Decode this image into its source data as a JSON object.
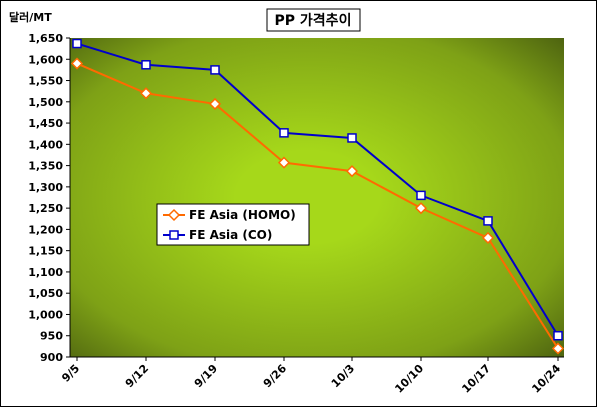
{
  "chart_data": {
    "type": "line",
    "title": "PP 가격추이",
    "ylabel": "달러/MT",
    "xlabel": "",
    "categories": [
      "9/5",
      "9/12",
      "9/19",
      "9/26",
      "10/3",
      "10/10",
      "10/17",
      "10/24"
    ],
    "ylim": [
      900,
      1650
    ],
    "ytick_step": 50,
    "yticks": [
      "900",
      "950",
      "1,000",
      "1,050",
      "1,100",
      "1,150",
      "1,200",
      "1,250",
      "1,300",
      "1,350",
      "1,400",
      "1,450",
      "1,500",
      "1,550",
      "1,600",
      "1,650"
    ],
    "grid": false,
    "legend_position": "center-left",
    "series": [
      {
        "name": "FE Asia (HOMO)",
        "color": "#ff6a00",
        "marker": "diamond",
        "values": [
          1590,
          1520,
          1495,
          1357,
          1337,
          1250,
          1180,
          920
        ]
      },
      {
        "name": "FE Asia (CO)",
        "color": "#0000cc",
        "marker": "square",
        "values": [
          1637,
          1587,
          1575,
          1427,
          1415,
          1280,
          1220,
          950
        ]
      }
    ],
    "colors": {
      "plot_light": "#a6d81a",
      "plot_dark": "#4e6410",
      "axis": "#000000"
    }
  }
}
